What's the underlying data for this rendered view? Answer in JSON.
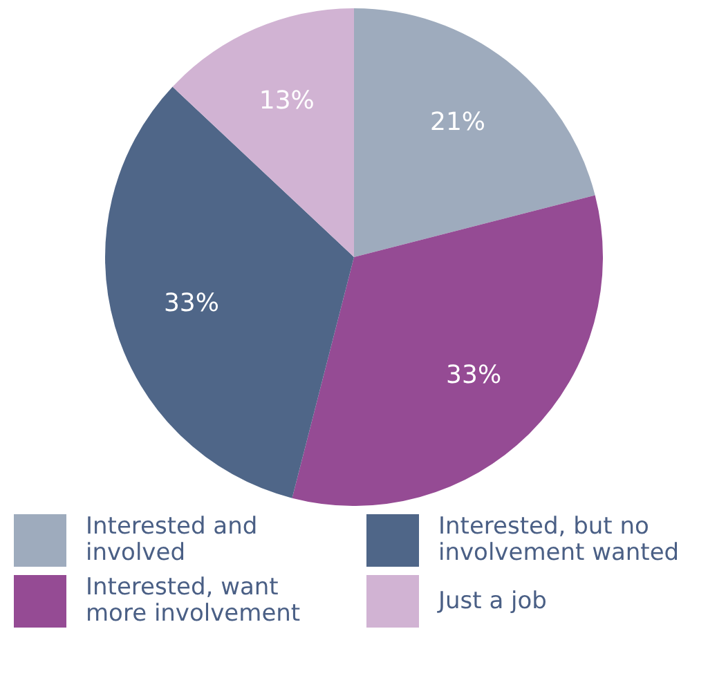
{
  "chart_data": {
    "type": "pie",
    "categories": [
      "Interested and involved",
      "Interested, want more involvement",
      "Interested, but no involvement wanted",
      "Just a job"
    ],
    "values": [
      21,
      33,
      33,
      13
    ],
    "colors": [
      "#9eabbd",
      "#954b94",
      "#4f6688",
      "#d1b3d3"
    ],
    "value_labels": [
      "21%",
      "33%",
      "33%",
      "13%"
    ],
    "legend": "bottom"
  }
}
